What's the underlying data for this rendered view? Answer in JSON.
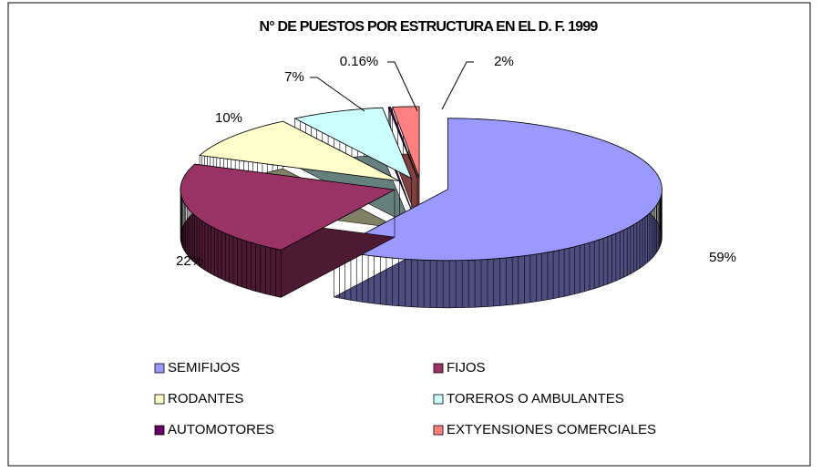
{
  "chart_data": {
    "type": "pie",
    "title": "N° DE PUESTOS POR ESTRUCTURA EN EL D. F. 1999",
    "categories": [
      "SEMIFIJOS",
      "FIJOS",
      "RODANTES",
      "TOREROS O AMBULANTES",
      "AUTOMOTORES",
      "EXTYENSIONES COMERCIALES"
    ],
    "values": [
      59,
      22,
      10,
      7,
      0.16,
      2
    ],
    "value_labels": [
      "59%",
      "22%",
      "10%",
      "7%",
      "0.16%",
      "2%"
    ],
    "colors": [
      "#9999ff",
      "#993366",
      "#ffffcc",
      "#ccffff",
      "#660066",
      "#ff8080"
    ],
    "legend": "bottom"
  }
}
